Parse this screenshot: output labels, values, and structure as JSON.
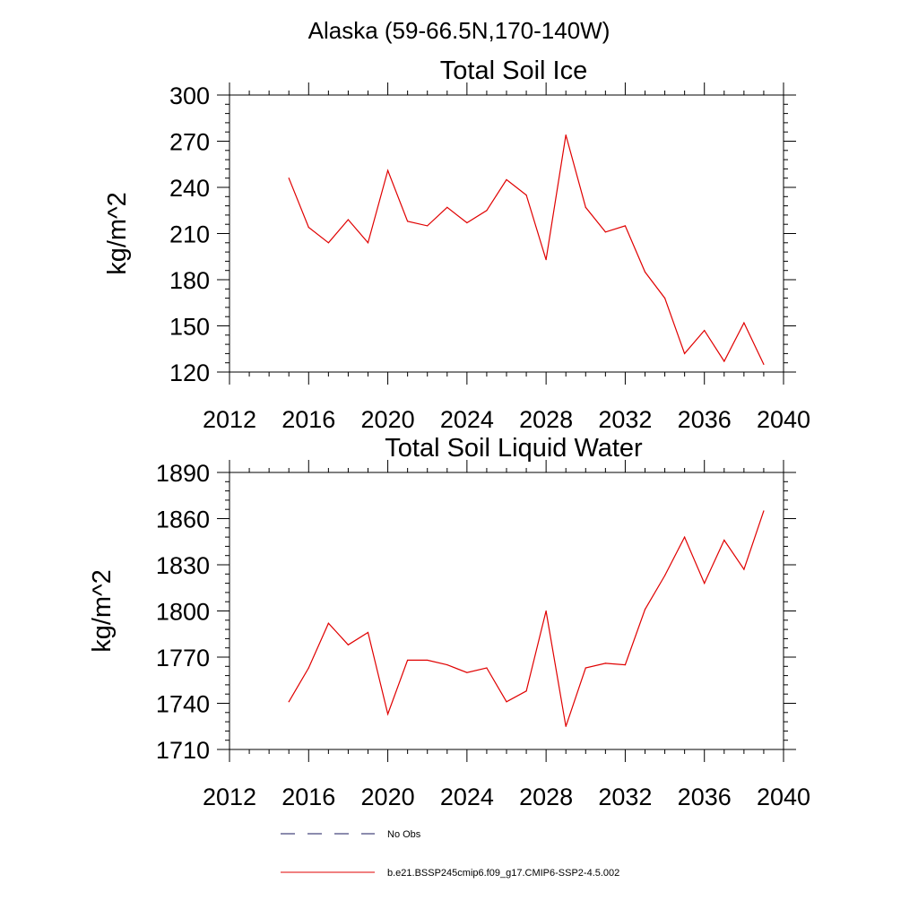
{
  "figure": {
    "title": "Alaska (59-66.5N,170-140W)"
  },
  "legend": {
    "placement": "bottom-left, below plots",
    "entries": [
      {
        "label": "No Obs",
        "color": "#1a1a5e",
        "style": "dashed"
      },
      {
        "label": "b.e21.BSSP245cmip6.f09_g17.CMIP6-SSP2-4.5.002",
        "color": "#e00000",
        "style": "solid"
      }
    ]
  },
  "chart_data": [
    {
      "type": "line",
      "title": "Total Soil Ice",
      "xlabel": "",
      "ylabel": "kg/m^2",
      "xlim": [
        2012,
        2040
      ],
      "ylim": [
        120,
        300
      ],
      "xticks": [
        2012,
        2016,
        2020,
        2024,
        2028,
        2032,
        2036,
        2040
      ],
      "yticks": [
        120,
        150,
        180,
        210,
        240,
        270,
        300
      ],
      "grid": false,
      "series": [
        {
          "name": "b.e21.BSSP245cmip6.f09_g17.CMIP6-SSP2-4.5.002",
          "color": "#e00000",
          "x": [
            2015,
            2016,
            2017,
            2018,
            2019,
            2020,
            2021,
            2022,
            2023,
            2024,
            2025,
            2026,
            2027,
            2028,
            2029,
            2030,
            2031,
            2032,
            2033,
            2034,
            2035,
            2036,
            2037,
            2038,
            2039
          ],
          "y": [
            246,
            214,
            204,
            219,
            204,
            251,
            218,
            215,
            227,
            217,
            225,
            245,
            235,
            193,
            274,
            227,
            211,
            215,
            185,
            168,
            132,
            147,
            127,
            152,
            125
          ]
        }
      ]
    },
    {
      "type": "line",
      "title": "Total Soil Liquid Water",
      "xlabel": "",
      "ylabel": "kg/m^2",
      "xlim": [
        2012,
        2040
      ],
      "ylim": [
        1710,
        1890
      ],
      "xticks": [
        2012,
        2016,
        2020,
        2024,
        2028,
        2032,
        2036,
        2040
      ],
      "yticks": [
        1710,
        1740,
        1770,
        1800,
        1830,
        1860,
        1890
      ],
      "grid": false,
      "series": [
        {
          "name": "b.e21.BSSP245cmip6.f09_g17.CMIP6-SSP2-4.5.002",
          "color": "#e00000",
          "x": [
            2015,
            2016,
            2017,
            2018,
            2019,
            2020,
            2021,
            2022,
            2023,
            2024,
            2025,
            2026,
            2027,
            2028,
            2029,
            2030,
            2031,
            2032,
            2033,
            2034,
            2035,
            2036,
            2037,
            2038,
            2039
          ],
          "y": [
            1741,
            1763,
            1792,
            1778,
            1786,
            1733,
            1768,
            1768,
            1765,
            1760,
            1763,
            1741,
            1748,
            1800,
            1725,
            1763,
            1766,
            1765,
            1801,
            1823,
            1848,
            1818,
            1846,
            1827,
            1865
          ]
        }
      ]
    }
  ]
}
